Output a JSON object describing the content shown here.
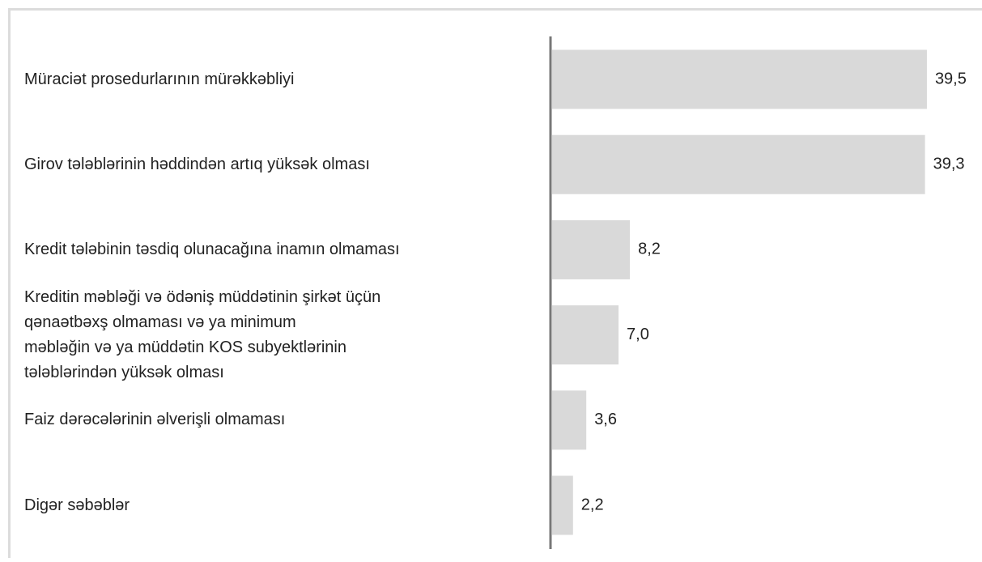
{
  "chart_data": {
    "type": "bar",
    "orientation": "horizontal",
    "categories": [
      "Müraciət prosedurlarının mürəkkəbliyi",
      "Girov tələblərinin həddindən artıq yüksək olması",
      "Kredit tələbinin təsdiq olunacağına inamın olmaması",
      "Kreditin məbləği və ödəniş müddətinin şirkət üçün\nqənaətbəxş olmaması və ya  minimum\nməbləğin və ya müddətin KOS subyektlərinin\ntələblərindən yüksək olması",
      "Faiz dərəcələrinin əlverişli olmaması",
      "Digər səbəblər"
    ],
    "values": [
      39.5,
      39.3,
      8.2,
      7.0,
      3.6,
      2.2
    ],
    "value_labels": [
      "39,5",
      "39,3",
      "8,2",
      "7,0",
      "3,6",
      "2,2"
    ],
    "color": "#d9d9d9"
  }
}
